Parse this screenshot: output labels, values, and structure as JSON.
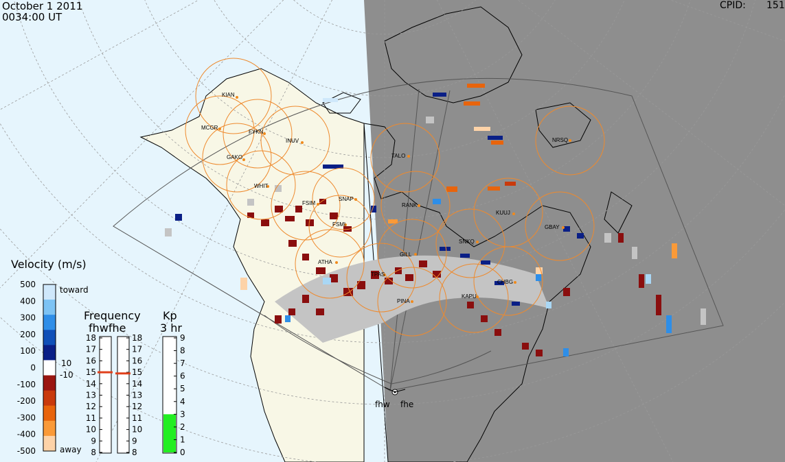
{
  "header": {
    "date": "October  1 2011",
    "time": "0034:00 UT",
    "cpid_label": "CPID:",
    "cpid_value": "151"
  },
  "stations": [
    "KIAN",
    "MCGR",
    "FYKN",
    "INUV",
    "GAKO",
    "WHIT",
    "TALO",
    "NRSQ",
    "FSIM",
    "SNAP",
    "FSMI",
    "RANK",
    "KUUJ",
    "GBAY",
    "SNKQ",
    "GILL",
    "ATHA",
    "TPAS",
    "CHBG",
    "PINA",
    "KAPU"
  ],
  "radar": {
    "labels": [
      "fhw",
      "fhe"
    ]
  },
  "velocity_scale": {
    "title": "Velocity (m/s)",
    "ticks": [
      "500",
      "400",
      "300",
      "200",
      "100",
      "0",
      "-100",
      "-200",
      "-300",
      "-400",
      "-500"
    ],
    "toward_label": "toward",
    "away_label": "away",
    "threshold_pos": "10",
    "threshold_neg": "-10",
    "colors": [
      "#cfe8fb",
      "#7cc3f4",
      "#2e8ee8",
      "#1050b8",
      "#0a1f86",
      "#ffffff",
      "#9a1510",
      "#c93a0c",
      "#e8640c",
      "#fa9a38",
      "#fdd3a8"
    ]
  },
  "frequency": {
    "title": "Frequency",
    "subtitle": "fhwfhe",
    "ticks": [
      "18",
      "17",
      "16",
      "15",
      "14",
      "13",
      "12",
      "11",
      "10",
      "9",
      "8"
    ],
    "fhw_value": 15.0,
    "fhe_value": 14.9,
    "marker_color": "#e0401b"
  },
  "kp": {
    "title": "Kp",
    "subtitle": "3 hr",
    "ticks": [
      "9",
      "8",
      "7",
      "6",
      "5",
      "4",
      "3",
      "2",
      "1",
      "0"
    ],
    "value": 3,
    "fill_color": "#22ee22"
  }
}
